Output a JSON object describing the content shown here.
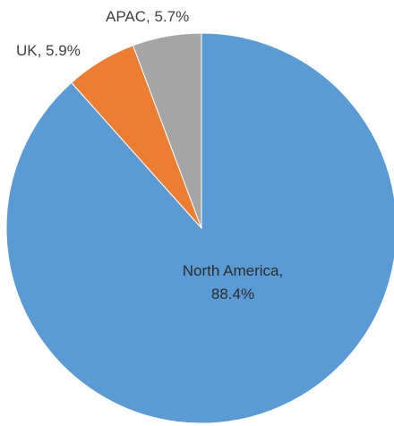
{
  "chart_data": {
    "type": "pie",
    "title": "",
    "start_angle_deg": 0,
    "direction": "clockwise",
    "legend": "none",
    "slices": [
      {
        "name": "North America",
        "value": 88.4,
        "color": "#5b9bd5",
        "label_lines": [
          "North America,",
          "88.4%"
        ]
      },
      {
        "name": "UK",
        "value": 5.9,
        "color": "#ed7d31",
        "label_lines": [
          "UK, 5.9%"
        ]
      },
      {
        "name": "APAC",
        "value": 5.7,
        "color": "#a5a5a5",
        "label_lines": [
          "APAC, 5.7%"
        ]
      }
    ]
  }
}
